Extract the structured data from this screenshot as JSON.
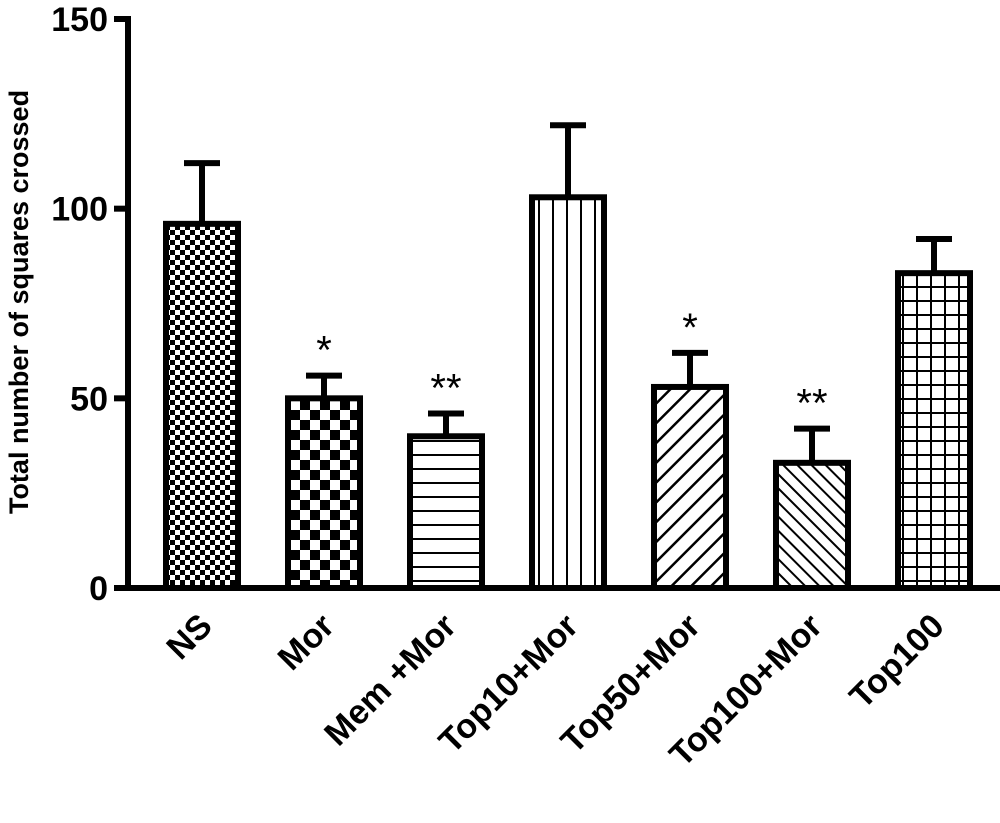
{
  "chart_data": {
    "type": "bar",
    "title": "",
    "xlabel": "",
    "ylabel": "Total number of squares crossed",
    "ylim": [
      0,
      150
    ],
    "yticks": [
      0,
      50,
      100,
      150
    ],
    "grid": false,
    "categories": [
      "NS",
      "Mor",
      "Mem +Mor",
      "Top10+Mor",
      "Top50+Mor",
      "Top100+Mor",
      "Top100"
    ],
    "values": [
      96,
      50,
      40,
      103,
      53,
      33,
      83
    ],
    "errors": [
      16,
      6,
      6,
      19,
      9,
      9,
      9
    ],
    "annotations": [
      "",
      "*",
      "**",
      "",
      "*",
      "**",
      ""
    ],
    "patterns": [
      "fine-checker",
      "checker",
      "horizontal-lines",
      "vertical-lines",
      "diagonal-lines",
      "diagonal-lines-dense",
      "grid"
    ],
    "colors": {
      "stroke": "#000000",
      "fill": "#ffffff"
    }
  }
}
